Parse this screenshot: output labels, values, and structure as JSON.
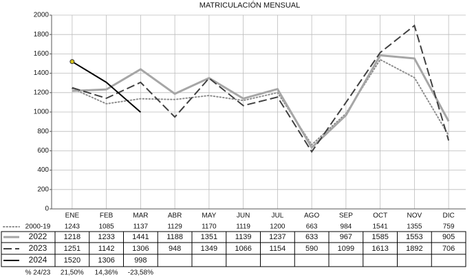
{
  "chart_data": {
    "type": "line",
    "title": "MATRICULACIÓN MENSUAL",
    "categories": [
      "ENE",
      "FEB",
      "MAR",
      "ABR",
      "MAY",
      "JUN",
      "JUL",
      "AGO",
      "SEP",
      "OCT",
      "NOV",
      "DIC"
    ],
    "series": [
      {
        "name": "2000-19",
        "color": "#8c8c8c",
        "style": "dotted",
        "values": [
          1243,
          1085,
          1137,
          1129,
          1170,
          1119,
          1200,
          663,
          984,
          1541,
          1355,
          759
        ]
      },
      {
        "name": "2022",
        "color": "#a6a6a6",
        "style": "solid",
        "values": [
          1218,
          1233,
          1441,
          1188,
          1351,
          1139,
          1237,
          633,
          967,
          1585,
          1553,
          905
        ]
      },
      {
        "name": "2023",
        "color": "#404040",
        "style": "dashed",
        "values": [
          1251,
          1142,
          1306,
          948,
          1349,
          1066,
          1154,
          590,
          1099,
          1613,
          1892,
          706
        ]
      },
      {
        "name": "2024",
        "color": "#000000",
        "style": "solid",
        "values": [
          1520,
          1306,
          998,
          null,
          null,
          null,
          null,
          null,
          null,
          null,
          null,
          null
        ]
      }
    ],
    "ylim": [
      0,
      2000
    ],
    "yticks": [
      0,
      200,
      400,
      600,
      800,
      1000,
      1200,
      1400,
      1600,
      1800,
      2000
    ],
    "grid": true,
    "change_label": "% 24/23",
    "change": [
      "21,50%",
      "14,36%",
      "-23,58%"
    ]
  }
}
